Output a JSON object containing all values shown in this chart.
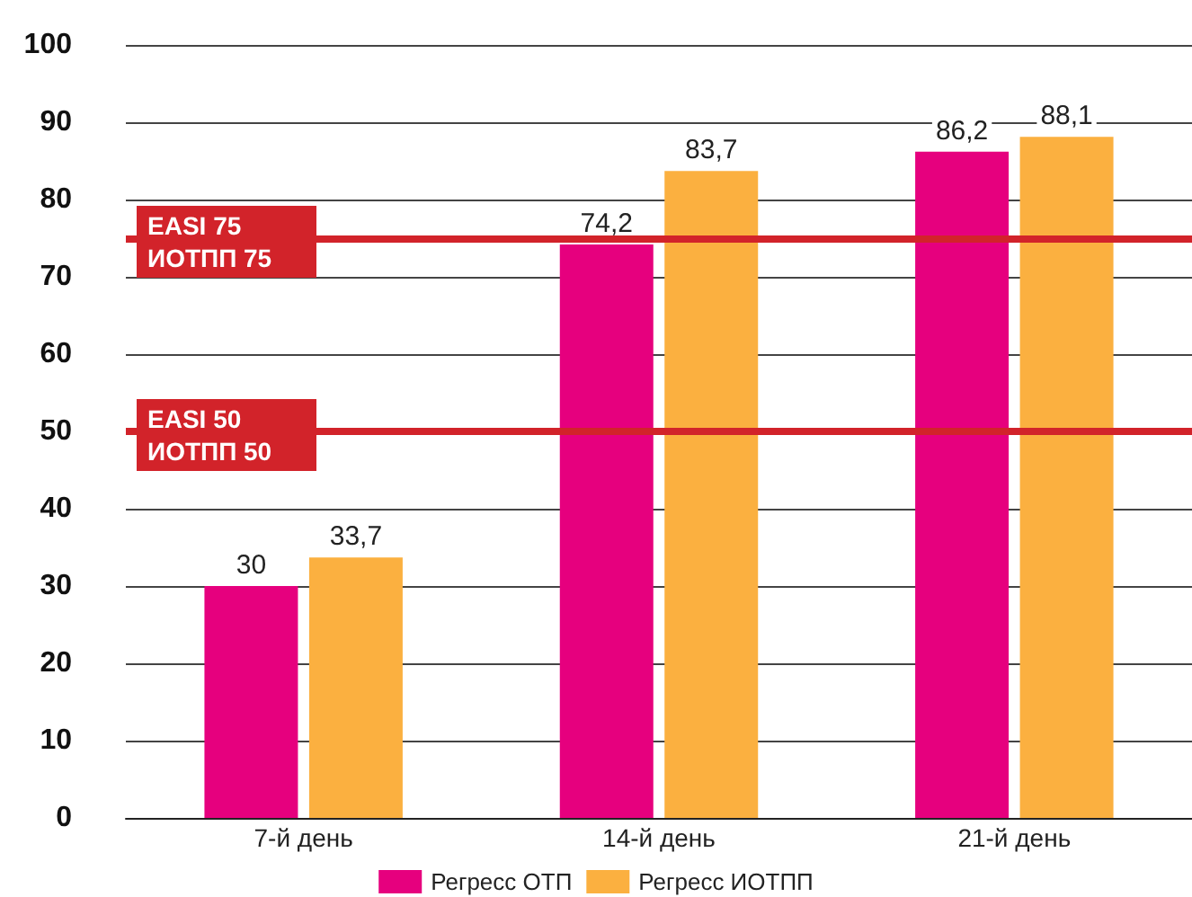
{
  "chart_data": {
    "type": "bar",
    "categories": [
      "7-й день",
      "14-й день",
      "21-й день"
    ],
    "series": [
      {
        "name": "Регресс ОТП",
        "color": "#e6007e",
        "values": [
          30,
          74.2,
          86.2
        ],
        "value_labels": [
          "30",
          "74,2",
          "86,2"
        ]
      },
      {
        "name": "Регресс ИОТПП",
        "color": "#fbb040",
        "values": [
          33.7,
          83.7,
          88.1
        ],
        "value_labels": [
          "33,7",
          "83,7",
          "88,1"
        ]
      }
    ],
    "ylim": [
      0,
      100
    ],
    "yticks": [
      0,
      10,
      20,
      30,
      40,
      50,
      60,
      70,
      80,
      90,
      100
    ],
    "grid": "y",
    "legend": "bottom",
    "ref_lines": [
      {
        "axis": "y",
        "value": 75,
        "label": "EASI 75\nИОТПП 75",
        "color": "#d2232a"
      },
      {
        "axis": "y",
        "value": 50,
        "label": "EASI 50\nИОТПП 50",
        "color": "#d2232a"
      }
    ]
  }
}
